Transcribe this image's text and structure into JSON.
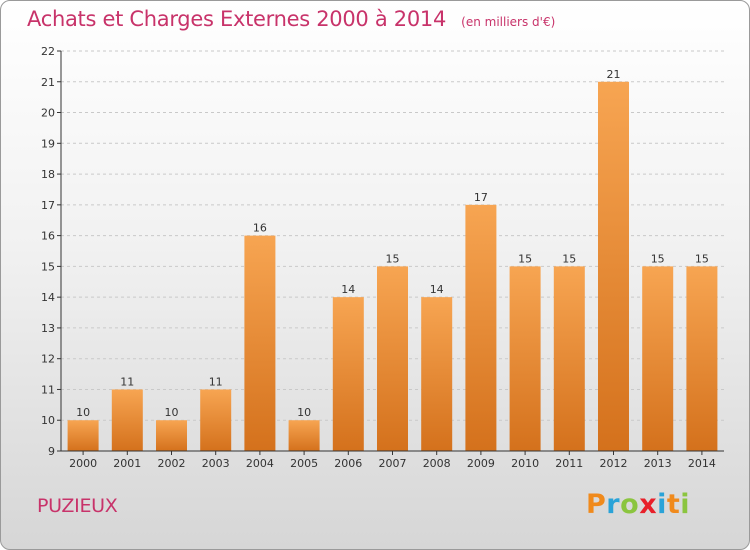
{
  "header": {
    "title": "Achats et Charges Externes 2000 à 2014",
    "unit": "(en milliers d'€)"
  },
  "footer": {
    "commune": "PUZIEUX",
    "brand": {
      "letters": [
        "P",
        "r",
        "o",
        "x",
        "i",
        "t",
        "i"
      ],
      "colors": [
        "#f08a1c",
        "#2aa3d8",
        "#8bc53f",
        "#e8202a",
        "#2aa3d8",
        "#f08a1c",
        "#8bc53f"
      ]
    }
  },
  "colors": {
    "bar_light": "#f7a552",
    "bar_dark": "#d4711c",
    "axis": "#333333",
    "grid": "#c9c9c9",
    "text": "#333333"
  },
  "chart_data": {
    "type": "bar",
    "title": "Achats et Charges Externes 2000 à 2014",
    "unit": "(en milliers d'€)",
    "categories": [
      "2000",
      "2001",
      "2002",
      "2003",
      "2004",
      "2005",
      "2006",
      "2007",
      "2008",
      "2009",
      "2010",
      "2011",
      "2012",
      "2013",
      "2014"
    ],
    "values": [
      10,
      11,
      10,
      11,
      16,
      10,
      14,
      15,
      14,
      17,
      15,
      15,
      21,
      15,
      15
    ],
    "ylim": [
      9,
      22
    ],
    "yticks": [
      9,
      10,
      11,
      12,
      13,
      14,
      15,
      16,
      17,
      18,
      19,
      20,
      21,
      22
    ],
    "grid": true,
    "data_labels": true,
    "legend": "none"
  }
}
